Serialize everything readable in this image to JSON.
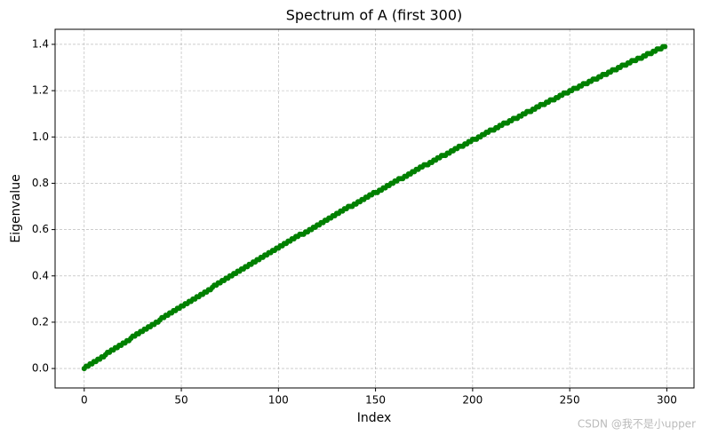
{
  "chart_data": {
    "type": "line",
    "title": "Spectrum of A (first 300)",
    "x_label": "Index",
    "y_label": "Eigenvalue",
    "xlim": [
      -15,
      314
    ],
    "ylim": [
      -0.084,
      1.465
    ],
    "xticks": [
      0,
      50,
      100,
      150,
      200,
      250,
      300
    ],
    "yticks": [
      {
        "value": 0,
        "label": "0.0"
      },
      0.2,
      0.4,
      0.6,
      0.8,
      {
        "value": 1,
        "label": "1.0"
      },
      1.2,
      1.4
    ],
    "grid": true,
    "marker": "o",
    "x": [
      0,
      1,
      2,
      3,
      4,
      5,
      6,
      7,
      8,
      9,
      10,
      11,
      12,
      13,
      14,
      15,
      16,
      17,
      18,
      19,
      20,
      21,
      22,
      23,
      24,
      25,
      26,
      27,
      28,
      29,
      30,
      31,
      32,
      33,
      34,
      35,
      36,
      37,
      38,
      39,
      40,
      41,
      42,
      43,
      44,
      45,
      46,
      47,
      48,
      49,
      50,
      51,
      52,
      53,
      54,
      55,
      56,
      57,
      58,
      59,
      60,
      61,
      62,
      63,
      64,
      65,
      66,
      67,
      68,
      69,
      70,
      71,
      72,
      73,
      74,
      75,
      76,
      77,
      78,
      79,
      80,
      81,
      82,
      83,
      84,
      85,
      86,
      87,
      88,
      89,
      90,
      91,
      92,
      93,
      94,
      95,
      96,
      97,
      98,
      99,
      100,
      101,
      102,
      103,
      104,
      105,
      106,
      107,
      108,
      109,
      110,
      111,
      112,
      113,
      114,
      115,
      116,
      117,
      118,
      119,
      120,
      121,
      122,
      123,
      124,
      125,
      126,
      127,
      128,
      129,
      130,
      131,
      132,
      133,
      134,
      135,
      136,
      137,
      138,
      139,
      140,
      141,
      142,
      143,
      144,
      145,
      146,
      147,
      148,
      149,
      150,
      151,
      152,
      153,
      154,
      155,
      156,
      157,
      158,
      159,
      160,
      161,
      162,
      163,
      164,
      165,
      166,
      167,
      168,
      169,
      170,
      171,
      172,
      173,
      174,
      175,
      176,
      177,
      178,
      179,
      180,
      181,
      182,
      183,
      184,
      185,
      186,
      187,
      188,
      189,
      190,
      191,
      192,
      193,
      194,
      195,
      196,
      197,
      198,
      199,
      200,
      201,
      202,
      203,
      204,
      205,
      206,
      207,
      208,
      209,
      210,
      211,
      212,
      213,
      214,
      215,
      216,
      217,
      218,
      219,
      220,
      221,
      222,
      223,
      224,
      225,
      226,
      227,
      228,
      229,
      230,
      231,
      232,
      233,
      234,
      235,
      236,
      237,
      238,
      239,
      240,
      241,
      242,
      243,
      244,
      245,
      246,
      247,
      248,
      249,
      250,
      251,
      252,
      253,
      254,
      255,
      256,
      257,
      258,
      259,
      260,
      261,
      262,
      263,
      264,
      265,
      266,
      267,
      268,
      269,
      270,
      271,
      272,
      273,
      274,
      275,
      276,
      277,
      278,
      279,
      280,
      281,
      282,
      283,
      284,
      285,
      286,
      287,
      288,
      289,
      290,
      291,
      292,
      293,
      294,
      295,
      296,
      297,
      298,
      299
    ],
    "series": [
      {
        "color": "#008000",
        "values": [
          0.0,
          0.01,
          0.01,
          0.02,
          0.02,
          0.03,
          0.03,
          0.04,
          0.04,
          0.05,
          0.05,
          0.06,
          0.07,
          0.07,
          0.08,
          0.08,
          0.09,
          0.09,
          0.1,
          0.1,
          0.11,
          0.11,
          0.12,
          0.12,
          0.13,
          0.14,
          0.14,
          0.15,
          0.15,
          0.16,
          0.16,
          0.17,
          0.17,
          0.18,
          0.18,
          0.19,
          0.19,
          0.2,
          0.2,
          0.21,
          0.22,
          0.22,
          0.23,
          0.23,
          0.24,
          0.24,
          0.25,
          0.25,
          0.26,
          0.26,
          0.27,
          0.27,
          0.28,
          0.28,
          0.29,
          0.29,
          0.3,
          0.3,
          0.31,
          0.31,
          0.32,
          0.32,
          0.33,
          0.33,
          0.34,
          0.34,
          0.35,
          0.36,
          0.36,
          0.37,
          0.37,
          0.38,
          0.38,
          0.39,
          0.39,
          0.4,
          0.4,
          0.41,
          0.41,
          0.42,
          0.42,
          0.43,
          0.43,
          0.44,
          0.44,
          0.45,
          0.45,
          0.46,
          0.46,
          0.47,
          0.47,
          0.48,
          0.48,
          0.49,
          0.49,
          0.5,
          0.5,
          0.51,
          0.51,
          0.52,
          0.52,
          0.53,
          0.53,
          0.54,
          0.54,
          0.55,
          0.55,
          0.56,
          0.56,
          0.57,
          0.57,
          0.58,
          0.58,
          0.58,
          0.59,
          0.59,
          0.6,
          0.6,
          0.61,
          0.61,
          0.62,
          0.62,
          0.63,
          0.63,
          0.64,
          0.64,
          0.65,
          0.65,
          0.66,
          0.66,
          0.67,
          0.67,
          0.68,
          0.68,
          0.69,
          0.69,
          0.7,
          0.7,
          0.7,
          0.71,
          0.71,
          0.72,
          0.72,
          0.73,
          0.73,
          0.74,
          0.74,
          0.75,
          0.75,
          0.76,
          0.76,
          0.76,
          0.77,
          0.77,
          0.78,
          0.78,
          0.79,
          0.79,
          0.8,
          0.8,
          0.81,
          0.81,
          0.82,
          0.82,
          0.82,
          0.83,
          0.83,
          0.84,
          0.84,
          0.85,
          0.85,
          0.86,
          0.86,
          0.87,
          0.87,
          0.88,
          0.88,
          0.88,
          0.89,
          0.89,
          0.9,
          0.9,
          0.91,
          0.91,
          0.92,
          0.92,
          0.92,
          0.93,
          0.93,
          0.94,
          0.94,
          0.95,
          0.95,
          0.96,
          0.96,
          0.96,
          0.97,
          0.97,
          0.98,
          0.98,
          0.99,
          0.99,
          0.99,
          1.0,
          1.0,
          1.01,
          1.01,
          1.02,
          1.02,
          1.03,
          1.03,
          1.03,
          1.04,
          1.04,
          1.05,
          1.05,
          1.06,
          1.06,
          1.06,
          1.07,
          1.07,
          1.08,
          1.08,
          1.08,
          1.09,
          1.09,
          1.1,
          1.1,
          1.11,
          1.11,
          1.11,
          1.12,
          1.12,
          1.13,
          1.13,
          1.14,
          1.14,
          1.14,
          1.15,
          1.15,
          1.16,
          1.16,
          1.16,
          1.17,
          1.17,
          1.18,
          1.18,
          1.19,
          1.19,
          1.19,
          1.2,
          1.2,
          1.21,
          1.21,
          1.21,
          1.22,
          1.22,
          1.23,
          1.23,
          1.23,
          1.24,
          1.24,
          1.25,
          1.25,
          1.25,
          1.26,
          1.26,
          1.27,
          1.27,
          1.27,
          1.28,
          1.28,
          1.29,
          1.29,
          1.29,
          1.3,
          1.3,
          1.31,
          1.31,
          1.31,
          1.32,
          1.32,
          1.33,
          1.33,
          1.33,
          1.34,
          1.34,
          1.34,
          1.35,
          1.35,
          1.36,
          1.36,
          1.36,
          1.37,
          1.37,
          1.38,
          1.38,
          1.38,
          1.39,
          1.39
        ]
      }
    ]
  },
  "watermark": "CSDN @我不是小upper"
}
